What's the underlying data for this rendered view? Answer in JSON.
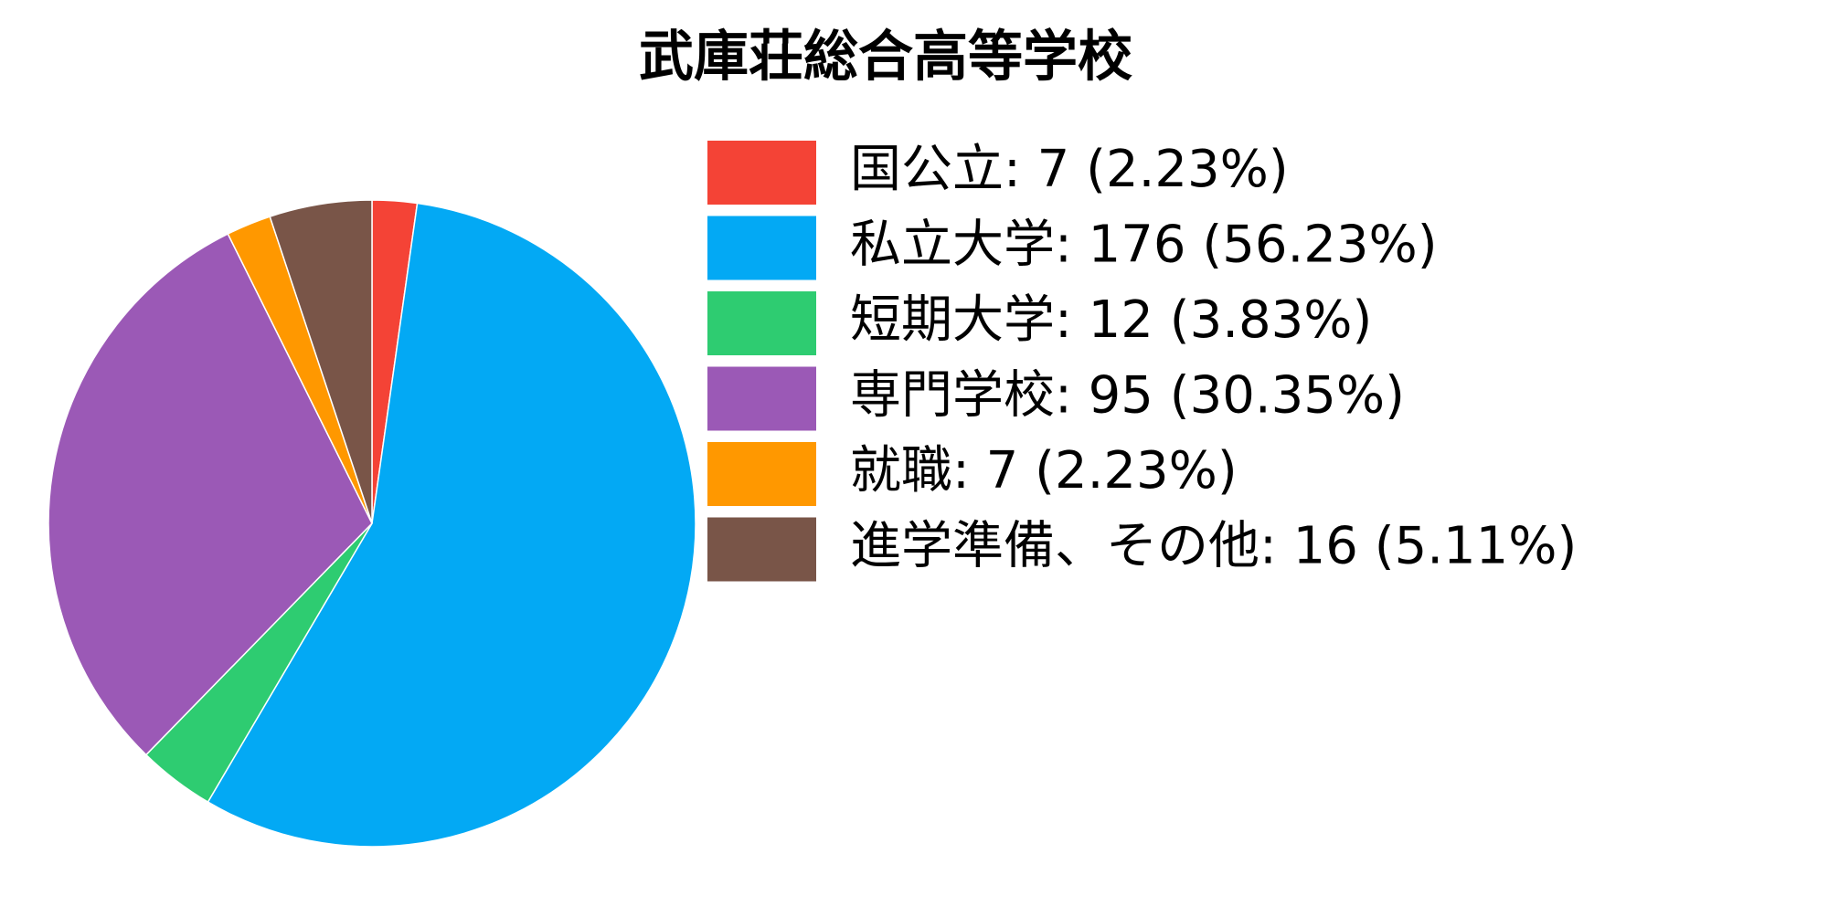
{
  "chart_data": {
    "type": "pie",
    "title": "武庫荘総合高等学校",
    "categories": [
      "国公立: 7 (2.23%)",
      "私立大学: 176 (56.23%)",
      "短期大学: 12 (3.83%)",
      "専門学校: 95 (30.35%)",
      "就職: 7 (2.23%)",
      "進学準備、その他: 16 (5.11%)"
    ],
    "values": [
      7,
      176,
      12,
      95,
      7,
      16
    ],
    "colors": [
      "#f44336",
      "#03a9f4",
      "#2ecc71",
      "#9b59b6",
      "#ff9800",
      "#795548"
    ]
  }
}
